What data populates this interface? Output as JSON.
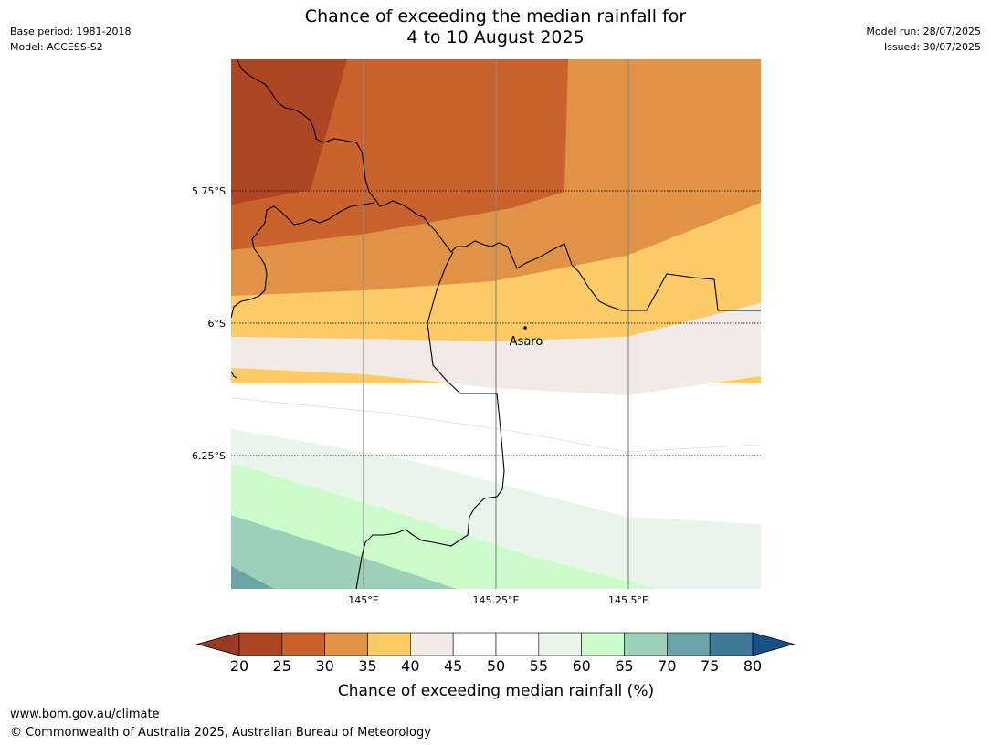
{
  "header": {
    "title_line1": "Chance of exceeding the median rainfall for",
    "title_line2": "4 to 10 August 2025",
    "base_period": "Base period: 1981-2018",
    "model": "Model: ACCESS-S2",
    "model_run": "Model run: 28/07/2025",
    "issued": "Issued: 30/07/2025"
  },
  "map": {
    "latitude_labels": [
      "5.75°S",
      "6°S",
      "6.25°S"
    ],
    "longitude_labels": [
      "145°E",
      "145.25°E",
      "145.5°E"
    ],
    "place": {
      "name": "Asaro"
    }
  },
  "colorbar": {
    "title": "Chance of exceeding median rainfall (%)",
    "ticks": [
      "20",
      "25",
      "30",
      "35",
      "40",
      "45",
      "50",
      "55",
      "60",
      "65",
      "70",
      "75",
      "80"
    ],
    "colors": [
      "#ae4623",
      "#c9622d",
      "#e09346",
      "#fdca68",
      "#f0ebe5",
      "#ffffff",
      "#ffffff",
      "#eaf5ea",
      "#ccfccc",
      "#9dd0b8",
      "#6ca3a7",
      "#3f7997"
    ],
    "under_color": "#9b3a22",
    "over_color": "#1a5089"
  },
  "footer": {
    "url": "www.bom.gov.au/climate",
    "copyright": "© Commonwealth of Australia 2025, Australian Bureau of Meteorology"
  }
}
